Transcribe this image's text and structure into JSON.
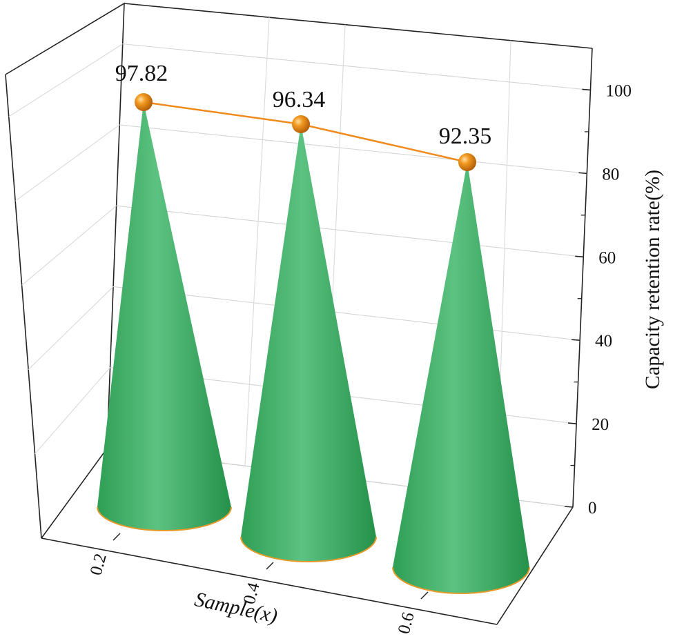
{
  "chart_data": {
    "type": "bar",
    "style": "3d-cone",
    "categories": [
      "0.2",
      "0.4",
      "0.6"
    ],
    "values": [
      97.82,
      96.34,
      92.35
    ],
    "data_labels": [
      "97.82",
      "96.34",
      "92.35"
    ],
    "xlabel": "Sample(x)",
    "ylabel": "Capacity retention rate(%)",
    "ylim": [
      0,
      110
    ],
    "yticks": [
      "0",
      "20",
      "40",
      "60",
      "80",
      "100"
    ],
    "grid": true,
    "overlay_line": true,
    "colors": {
      "cone": "#3fae64",
      "cone_light": "#63c585",
      "cone_dark": "#229247",
      "marker": "#f0921a",
      "line": "#f08a1c"
    }
  }
}
